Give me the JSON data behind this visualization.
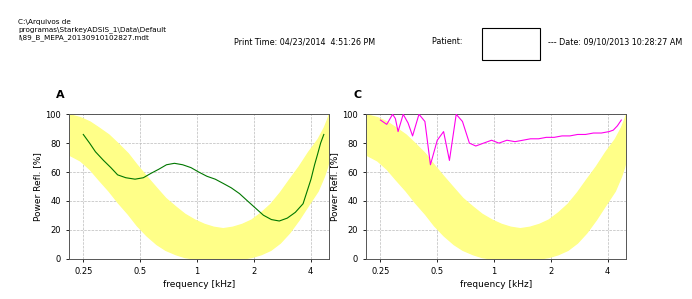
{
  "header_left": "C:\\Arquivos de\nprogramas\\StarkeyADSIS_1\\Data\\Default\nl\\89_B_MEPA_20130910102827.mdt",
  "header_center": "Print Time: 04/23/2014  4:51:26 PM",
  "header_right_pre": "Patient: ",
  "header_right_post": "--- Date: 09/10/2013 10:28:27 AM",
  "panel_A_label": "A",
  "panel_C_label": "C",
  "xlabel": "frequency [kHz]",
  "ylabel": "Power Refl. [%]",
  "ylim": [
    0,
    100
  ],
  "yticks": [
    0,
    20,
    40,
    60,
    80,
    100
  ],
  "bg_color": "#ffffff",
  "header_bg": "#c8c8c8",
  "plot_bg": "#ffffff",
  "yellow_fill": "#ffff88",
  "green_line_color": "#007700",
  "magenta_line_color": "#ff00ee",
  "grid_color": "#bbbbbb",
  "border_color": "#555555",
  "freq_ticks": [
    0.25,
    0.5,
    1.0,
    2.0,
    4.0
  ],
  "freq_tick_labels": [
    "0.25",
    "0.5",
    "1",
    "2",
    "4"
  ],
  "freq_log_min": 0.21,
  "freq_log_max": 5.0,
  "norm_band_upper": [
    100,
    98,
    95,
    91,
    86,
    80,
    73,
    65,
    57,
    49,
    42,
    36,
    31,
    27,
    24,
    22,
    21,
    22,
    24,
    27,
    32,
    38,
    46,
    55,
    64,
    74,
    83,
    91,
    96,
    99,
    100
  ],
  "norm_band_lower": [
    72,
    68,
    62,
    55,
    47,
    39,
    31,
    23,
    16,
    10,
    6,
    3,
    1,
    0,
    0,
    0,
    0,
    0,
    0,
    1,
    3,
    6,
    11,
    18,
    27,
    37,
    47,
    57,
    63,
    67,
    68
  ],
  "norm_band_freq": [
    0.21,
    0.24,
    0.27,
    0.3,
    0.34,
    0.38,
    0.43,
    0.48,
    0.54,
    0.61,
    0.68,
    0.77,
    0.86,
    0.97,
    1.09,
    1.22,
    1.37,
    1.54,
    1.73,
    1.94,
    2.18,
    2.45,
    2.75,
    3.08,
    3.46,
    3.88,
    4.36,
    4.7,
    4.87,
    4.96,
    5.0
  ],
  "green_freq": [
    0.25,
    0.27,
    0.29,
    0.32,
    0.35,
    0.38,
    0.42,
    0.47,
    0.52,
    0.57,
    0.63,
    0.69,
    0.76,
    0.84,
    0.93,
    1.02,
    1.13,
    1.25,
    1.38,
    1.52,
    1.68,
    1.85,
    2.04,
    2.25,
    2.48,
    2.73,
    3.01,
    3.32,
    3.65,
    4.02,
    4.2,
    4.35,
    4.52,
    4.7
  ],
  "green_values": [
    86,
    80,
    74,
    68,
    63,
    58,
    56,
    55,
    56,
    59,
    62,
    65,
    66,
    65,
    63,
    60,
    57,
    55,
    52,
    49,
    45,
    40,
    35,
    30,
    27,
    26,
    28,
    32,
    38,
    55,
    65,
    72,
    80,
    86
  ],
  "magenta_freq": [
    0.25,
    0.27,
    0.29,
    0.3,
    0.31,
    0.33,
    0.35,
    0.37,
    0.4,
    0.43,
    0.46,
    0.5,
    0.54,
    0.58,
    0.63,
    0.68,
    0.74,
    0.8,
    0.88,
    0.97,
    1.06,
    1.17,
    1.29,
    1.42,
    1.56,
    1.72,
    1.89,
    2.08,
    2.29,
    2.52,
    2.77,
    3.05,
    3.36,
    3.7,
    4.07,
    4.28,
    4.5,
    4.72
  ],
  "magenta_values": [
    96,
    93,
    100,
    97,
    88,
    100,
    94,
    85,
    100,
    95,
    65,
    82,
    88,
    68,
    100,
    95,
    80,
    78,
    80,
    82,
    80,
    82,
    81,
    82,
    83,
    83,
    84,
    84,
    85,
    85,
    86,
    86,
    87,
    87,
    88,
    89,
    92,
    96
  ]
}
